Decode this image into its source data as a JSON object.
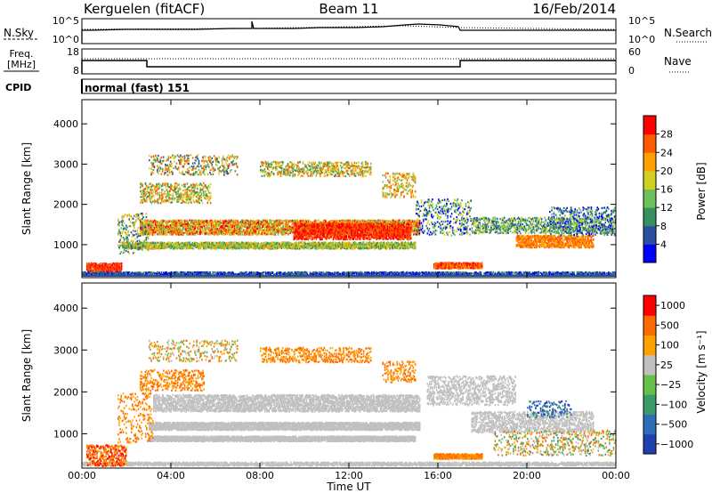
{
  "header": {
    "station": "Kerguelen (fitACF)",
    "beam": "Beam 11",
    "date": "16/Feb/2014"
  },
  "panels": {
    "nsky": {
      "label": "N.Sky",
      "left_ticks": [
        "10^5",
        "10^0"
      ],
      "right_ticks": [
        "10^5",
        "10^0"
      ],
      "right_label": "N.Search"
    },
    "freq": {
      "label_line1": "Freq.",
      "label_line2": "[MHz]",
      "left_ticks": [
        "18",
        "8"
      ],
      "right_ticks": [
        "60",
        "0"
      ],
      "right_label": "Nave"
    },
    "cpid": {
      "label": "CPID",
      "text": "normal (fast) 151"
    }
  },
  "colors": {
    "power_scale": [
      "#0000ff",
      "#2a4fa0",
      "#3a8f60",
      "#6cc05a",
      "#d0d020",
      "#ffa000",
      "#ff5a00",
      "#ff0000"
    ],
    "velocity_scale": [
      "#2040b0",
      "#2d6dba",
      "#3b9a6a",
      "#66c04a",
      "#c0c0c0",
      "#ffa000",
      "#ff6a00",
      "#ff0000"
    ],
    "ground_scatter": "#c0c0c0"
  },
  "chart_data": [
    {
      "type": "heatmap",
      "name": "power",
      "ylabel": "Slant Range [km]",
      "yticks": [
        "1000",
        "2000",
        "3000",
        "4000"
      ],
      "ylim": [
        180,
        4600
      ],
      "colorbar": {
        "label": "Power [dB]",
        "ticks": [
          "4",
          "8",
          "12",
          "16",
          "20",
          "24",
          "28"
        ],
        "range": [
          0,
          32
        ]
      }
    },
    {
      "type": "heatmap",
      "name": "velocity",
      "xlabel": "Time UT",
      "ylabel": "Slant Range [km]",
      "yticks": [
        "1000",
        "2000",
        "3000",
        "4000"
      ],
      "xticks": [
        "00:00",
        "04:00",
        "08:00",
        "12:00",
        "16:00",
        "20:00",
        "00:00"
      ],
      "ylim": [
        180,
        4600
      ],
      "colorbar": {
        "label": "Velocity [m s⁻¹]",
        "ticks": [
          "1000",
          "500",
          "100",
          "25",
          "−25",
          "−100",
          "−500",
          "−1000"
        ]
      }
    }
  ]
}
